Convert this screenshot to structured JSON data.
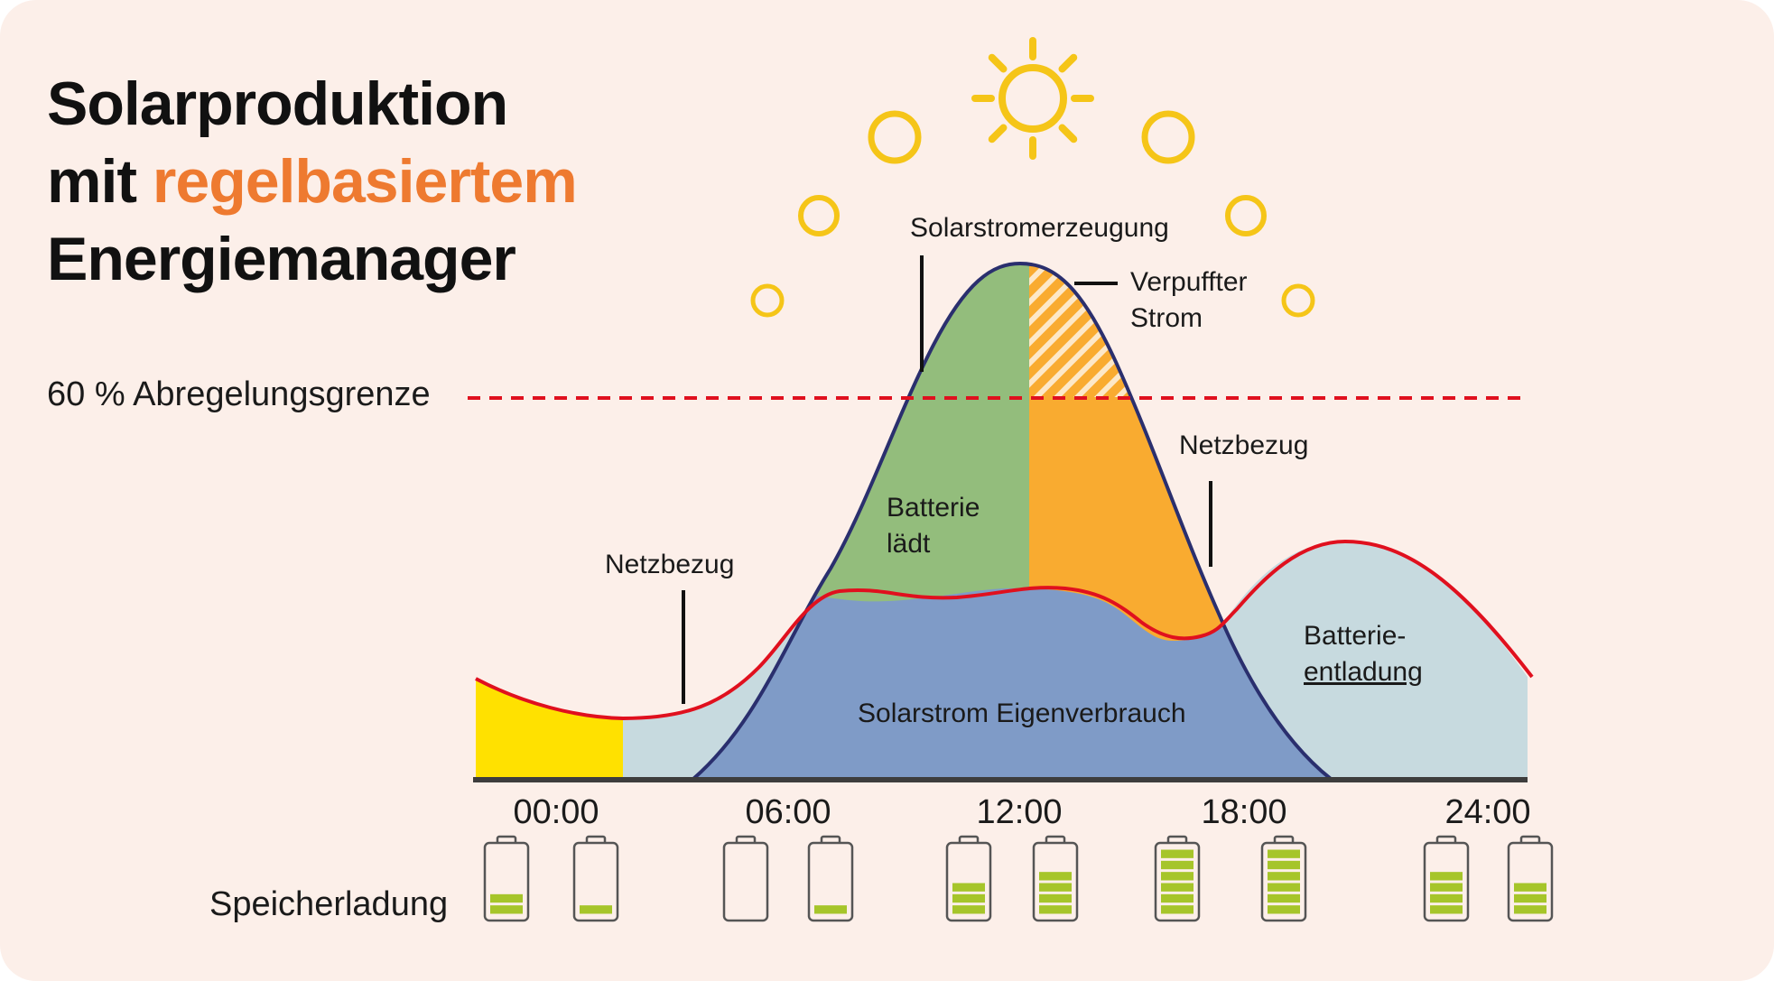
{
  "title": {
    "line1": "Solarproduktion",
    "line2_prefix": "mit ",
    "line2_highlight": "regelbasiertem",
    "line3": "Energiemanager"
  },
  "limit_label": "60 % Abregelungsgrenze",
  "labels": {
    "solar_generation": "Solarstromerzeugung",
    "wasted_line1": "Verpuffter",
    "wasted_line2": "Strom",
    "grid_right": "Netzbezug",
    "grid_left": "Netzbezug",
    "battery_charging_line1": "Batterie",
    "battery_charging_line2": "lädt",
    "battery_discharge_line1": "Batterie-",
    "battery_discharge_line2": "entladung",
    "self_consumption": "Solarstrom Eigenverbrauch",
    "storage": "Speicherladung"
  },
  "time_axis": [
    "00:00",
    "06:00",
    "12:00",
    "18:00",
    "24:00"
  ],
  "battery_levels": [
    2,
    1,
    0,
    1,
    3,
    4,
    6,
    6,
    4,
    3
  ],
  "battery_max_bars": 6,
  "colors": {
    "background": "#fcefe9",
    "accent": "#ee7a30",
    "sun": "#f5c518",
    "consumption_line": "#e0101e",
    "limit_line": "#e0101e",
    "solar_outline": "#2a2f6e",
    "self_consumption": "#7f9bc7",
    "battery_charging": "#93bd7c",
    "surplus": "#f9ab30",
    "grid_night": "#c7dadf",
    "night_yellow": "#ffe100",
    "battery_bar": "#a6c52a"
  }
}
